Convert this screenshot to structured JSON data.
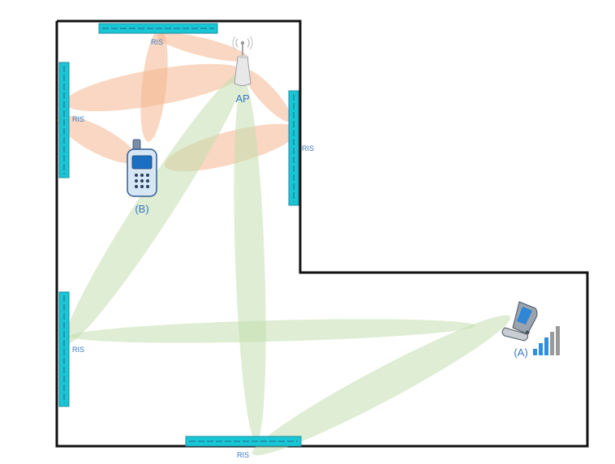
{
  "labels": {
    "ap": "AP",
    "device_a": "(A)",
    "device_b": "(B)",
    "ris": "RIS"
  },
  "colors": {
    "wall": "#111111",
    "ris_panel": "#19c6d6",
    "ris_dash": "#1f6b86",
    "label": "#3a78c0",
    "beam_orange": "#f4b690",
    "beam_green": "#c2dfae",
    "signal_active": "#2e8fe0",
    "signal_inactive": "#9a9a9a"
  },
  "icons": [
    "antenna-icon",
    "phone-icon",
    "flip-phone-icon",
    "signal-bars-icon"
  ],
  "signal_bars": {
    "total": 5,
    "active": 3
  }
}
